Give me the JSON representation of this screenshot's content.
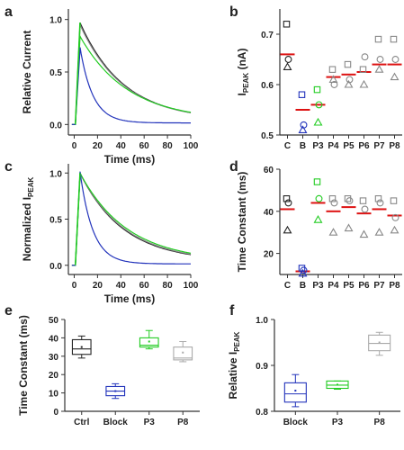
{
  "chart_data": [
    {
      "panel": "a",
      "type": "line",
      "xlabel": "Time (ms)",
      "ylabel": "Relative Current",
      "xlim": [
        -5,
        100
      ],
      "ylim": [
        -0.1,
        1.1
      ],
      "xticks": [
        0,
        20,
        40,
        60,
        80,
        100
      ],
      "yticks": [
        0.0,
        0.5,
        1.0
      ],
      "series": [
        {
          "color": "#222222",
          "peak": 0.97,
          "tau": 37,
          "x": [
            5,
            10,
            20,
            30,
            40,
            60,
            80,
            100
          ],
          "y": [
            0.97,
            0.85,
            0.61,
            0.43,
            0.31,
            0.2,
            0.15,
            0.12
          ]
        },
        {
          "color": "#888888",
          "peak": 0.95,
          "tau": 37,
          "x": [
            5,
            10,
            20,
            30,
            40,
            60,
            80,
            100
          ],
          "y": [
            0.95,
            0.83,
            0.6,
            0.43,
            0.31,
            0.2,
            0.15,
            0.12
          ]
        },
        {
          "color": "#22cc22",
          "peak": 0.84,
          "tau": 40,
          "x": [
            5,
            10,
            20,
            30,
            40,
            60,
            80,
            100
          ],
          "y": [
            0.84,
            0.75,
            0.57,
            0.43,
            0.33,
            0.21,
            0.15,
            0.13
          ]
        },
        {
          "color": "#2233bb",
          "peak": 0.72,
          "tau": 11,
          "x": [
            5,
            10,
            20,
            30,
            40,
            60,
            80,
            100
          ],
          "y": [
            0.72,
            0.45,
            0.17,
            0.07,
            0.04,
            0.03,
            0.02,
            0.02
          ]
        }
      ]
    },
    {
      "panel": "b",
      "type": "scatter",
      "ylabel": "I",
      "ylabel_sub": "PEAK",
      "ylabel_unit": " (nA)",
      "ylim": [
        0.5,
        0.75
      ],
      "yticks": [
        0.5,
        0.6,
        0.7
      ],
      "categories": [
        "C",
        "B",
        "P3",
        "P4",
        "P5",
        "P6",
        "P7",
        "P8"
      ],
      "colors": [
        "#222222",
        "#2233bb",
        "#22cc22",
        "#888888",
        "#888888",
        "#888888",
        "#888888",
        "#888888"
      ],
      "mean": [
        0.66,
        0.55,
        0.56,
        0.615,
        0.62,
        0.625,
        0.64,
        0.64
      ],
      "points": [
        [
          0.72,
          0.65,
          0.635
        ],
        [
          0.58,
          0.52,
          0.51
        ],
        [
          0.59,
          0.56,
          0.525
        ],
        [
          0.63,
          0.6,
          0.61
        ],
        [
          0.64,
          0.61,
          0.6
        ],
        [
          0.63,
          0.655,
          0.6
        ],
        [
          0.69,
          0.65,
          0.63
        ],
        [
          0.69,
          0.65,
          0.615
        ]
      ]
    },
    {
      "panel": "c",
      "type": "line",
      "xlabel": "Time (ms)",
      "ylabel": "Normalized I",
      "ylabel_sub": "PEAK",
      "xlim": [
        -5,
        100
      ],
      "ylim": [
        -0.1,
        1.1
      ],
      "xticks": [
        0,
        20,
        40,
        60,
        80,
        100
      ],
      "yticks": [
        0.0,
        0.5,
        1.0
      ],
      "series": [
        {
          "color": "#222222",
          "peak": 1.0,
          "tau": 37,
          "x": [
            5,
            10,
            20,
            30,
            40,
            60,
            80,
            100
          ],
          "y": [
            1.0,
            0.88,
            0.63,
            0.44,
            0.32,
            0.2,
            0.15,
            0.12
          ]
        },
        {
          "color": "#888888",
          "peak": 1.0,
          "tau": 38,
          "x": [
            5,
            10,
            20,
            30,
            40,
            60,
            80,
            100
          ],
          "y": [
            1.0,
            0.88,
            0.63,
            0.45,
            0.33,
            0.21,
            0.15,
            0.12
          ]
        },
        {
          "color": "#22cc22",
          "peak": 1.0,
          "tau": 40,
          "x": [
            5,
            10,
            20,
            30,
            40,
            60,
            80,
            100
          ],
          "y": [
            1.0,
            0.89,
            0.66,
            0.49,
            0.37,
            0.23,
            0.16,
            0.13
          ]
        },
        {
          "color": "#2233bb",
          "peak": 1.0,
          "tau": 11,
          "x": [
            5,
            10,
            20,
            30,
            40,
            60,
            80,
            100
          ],
          "y": [
            1.0,
            0.63,
            0.25,
            0.09,
            0.05,
            0.03,
            0.02,
            0.02
          ]
        }
      ]
    },
    {
      "panel": "d",
      "type": "scatter",
      "ylabel": "Time Constant (ms)",
      "ylim": [
        10,
        60
      ],
      "yticks": [
        20,
        40,
        60
      ],
      "categories": [
        "C",
        "B",
        "P3",
        "P4",
        "P5",
        "P6",
        "P7",
        "P8"
      ],
      "colors": [
        "#222222",
        "#2233bb",
        "#22cc22",
        "#888888",
        "#888888",
        "#888888",
        "#888888",
        "#888888"
      ],
      "mean": [
        41,
        11.5,
        44,
        40,
        42,
        39,
        41,
        38
      ],
      "points": [
        [
          46,
          44,
          31
        ],
        [
          13,
          12,
          10.5
        ],
        [
          54,
          46,
          36
        ],
        [
          46,
          44,
          30
        ],
        [
          46,
          45,
          32
        ],
        [
          45,
          41,
          29
        ],
        [
          46,
          44,
          30
        ],
        [
          45,
          37,
          31
        ]
      ]
    },
    {
      "panel": "e",
      "type": "box",
      "ylabel": "Time Constant (ms)",
      "ylim": [
        0,
        50
      ],
      "yticks": [
        0,
        10,
        20,
        30,
        40,
        50
      ],
      "categories": [
        "Ctrl",
        "Block",
        "P3",
        "P8"
      ],
      "colors": [
        "#222222",
        "#2233bb",
        "#22cc22",
        "#aaaaaa"
      ],
      "boxes": [
        {
          "min": 29,
          "q1": 31,
          "median": 34,
          "q3": 39,
          "max": 41,
          "mean": 35
        },
        {
          "min": 7,
          "q1": 8.5,
          "median": 11,
          "q3": 13.5,
          "max": 15,
          "mean": 11
        },
        {
          "min": 34,
          "q1": 35,
          "median": 36,
          "q3": 40,
          "max": 44,
          "mean": 38
        },
        {
          "min": 27,
          "q1": 28,
          "median": 29,
          "q3": 35,
          "max": 38,
          "mean": 32
        }
      ]
    },
    {
      "panel": "f",
      "type": "box",
      "ylabel": "Relative I",
      "ylabel_sub": "PEAK",
      "ylim": [
        0.8,
        1.0
      ],
      "yticks": [
        0.8,
        0.9,
        1.0
      ],
      "categories": [
        "Block",
        "P3",
        "P8"
      ],
      "colors": [
        "#2233bb",
        "#22cc22",
        "#aaaaaa"
      ],
      "boxes": [
        {
          "min": 0.81,
          "q1": 0.82,
          "median": 0.838,
          "q3": 0.862,
          "max": 0.88,
          "mean": 0.845
        },
        {
          "min": 0.848,
          "q1": 0.85,
          "median": 0.857,
          "q3": 0.866,
          "max": 0.866,
          "mean": 0.858
        },
        {
          "min": 0.922,
          "q1": 0.932,
          "median": 0.948,
          "q3": 0.966,
          "max": 0.972,
          "mean": 0.95
        }
      ]
    }
  ],
  "panel_labels": [
    "a",
    "b",
    "c",
    "d",
    "e",
    "f"
  ],
  "colors": {
    "mean_line": "#dd1111",
    "green_initial": "#22cc22"
  }
}
